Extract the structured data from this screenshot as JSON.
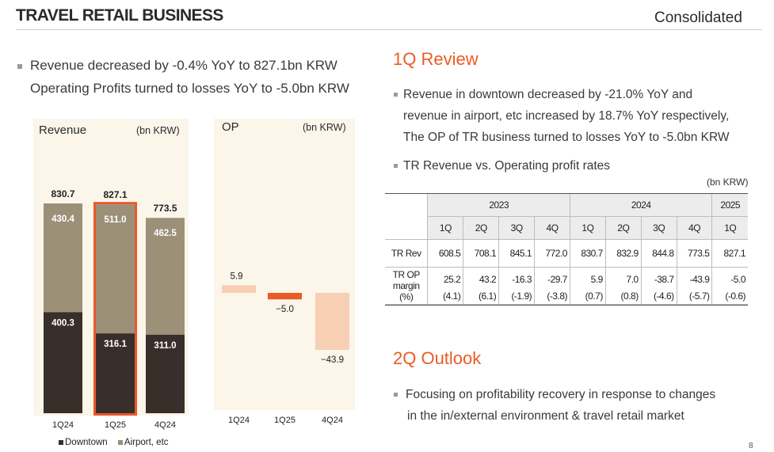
{
  "header": {
    "title": "TRAVEL RETAIL BUSINESS",
    "scope": "Consolidated"
  },
  "summary": [
    "Revenue decreased by -0.4% YoY to 827.1bn KRW",
    "Operating Profits turned to losses YoY to -5.0bn KRW"
  ],
  "colors": {
    "downtown": "#392f2a",
    "airport": "#9c9079",
    "op_faded": "#f7cfb3",
    "op_current": "#ea5b25",
    "highlight": "#e8592a",
    "panel": "#fbf5ea"
  },
  "chart_data": [
    {
      "type": "bar",
      "title": "Revenue",
      "unit": "(bn KRW)",
      "categories": [
        "1Q24",
        "1Q25",
        "4Q24"
      ],
      "series": [
        {
          "name": "Downtown",
          "values": [
            400.3,
            316.1,
            311.0
          ]
        },
        {
          "name": "Airport, etc",
          "values": [
            430.4,
            511.0,
            462.5
          ]
        }
      ],
      "totals": [
        830.7,
        827.1,
        773.5
      ],
      "labels": {
        "downtown": [
          "400.3",
          "316.1",
          "311.0"
        ],
        "airport": [
          "430.4",
          "511.0",
          "462.5"
        ],
        "totals": [
          "830.7",
          "827.1",
          "773.5"
        ]
      },
      "highlight": "1Q25",
      "legend": [
        "Downtown",
        "Airport, etc"
      ]
    },
    {
      "type": "bar",
      "title": "OP",
      "unit": "(bn KRW)",
      "categories": [
        "1Q24",
        "1Q25",
        "4Q24"
      ],
      "values": [
        5.9,
        -5.0,
        -43.9
      ],
      "labels": [
        "5.9",
        "−5.0",
        "−43.9"
      ],
      "highlight": "1Q25"
    }
  ],
  "review": {
    "heading": "1Q Review",
    "bullet1": {
      "line1": "Revenue in downtown decreased by -21.0% YoY and",
      "line2": "revenue in airport, etc increased by 18.7% YoY respectively,",
      "line3": "The OP of TR business turned to losses YoY to -5.0bn KRW"
    },
    "bullet2": "TR Revenue vs. Operating profit rates",
    "unit": "(bn KRW)"
  },
  "table": {
    "years": [
      "2023",
      "2024",
      "2025"
    ],
    "quarters": [
      "1Q",
      "2Q",
      "3Q",
      "4Q",
      "1Q",
      "2Q",
      "3Q",
      "4Q",
      "1Q"
    ],
    "rev_label": "TR Rev",
    "rev": [
      "608.5",
      "708.1",
      "845.1",
      "772.0",
      "830.7",
      "832.9",
      "844.8",
      "773.5",
      "827.1"
    ],
    "op_label": {
      "l1": "TR OP",
      "l2": "margin",
      "l3": "(%)"
    },
    "op": [
      "25.2",
      "43.2",
      "-16.3",
      "-29.7",
      "5.9",
      "7.0",
      "-38.7",
      "-43.9",
      "-5.0"
    ],
    "margin": [
      "(4.1)",
      "(6.1)",
      "(-1.9)",
      "(-3.8)",
      "(0.7)",
      "(0.8)",
      "(-4.6)",
      "(-5.7)",
      "(-0.6)"
    ]
  },
  "outlook": {
    "heading": "2Q Outlook",
    "line1": "Focusing on profitability recovery in response to changes",
    "line2": "in the in/external environment & travel retail market"
  },
  "page_number": "8"
}
